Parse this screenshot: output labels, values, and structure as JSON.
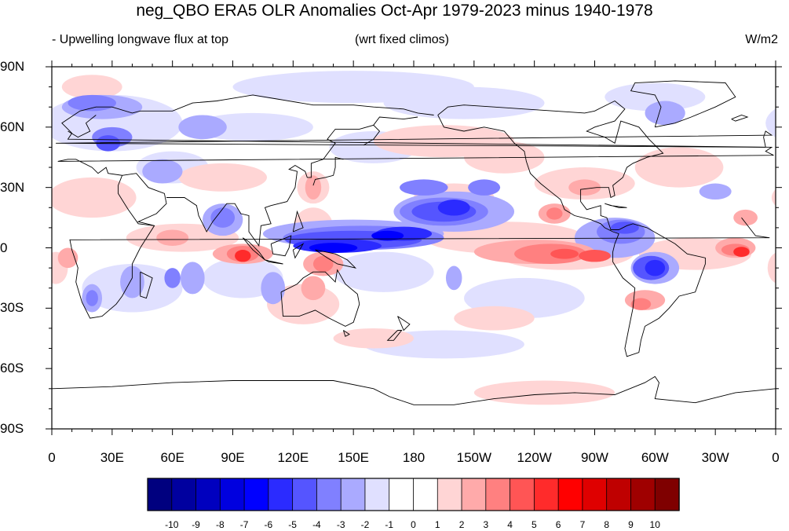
{
  "title": "neg_QBO ERA5 OLR Anomalies Oct-Apr 1979-2023 minus 1940-1978",
  "subtitle_left": "- Upwelling longwave flux at top",
  "subtitle_center": "(wrt fixed climos)",
  "units": "W/m2",
  "lat_labels": [
    "90N",
    "60N",
    "30N",
    "0",
    "30S",
    "60S",
    "90S"
  ],
  "lon_labels": [
    "0",
    "30E",
    "60E",
    "90E",
    "120E",
    "150E",
    "180",
    "150W",
    "120W",
    "90W",
    "60W",
    "30W",
    "0"
  ],
  "colorbar": {
    "labels": [
      "-10",
      "-9",
      "-8",
      "-7",
      "-6",
      "-5",
      "-4",
      "-3",
      "-2",
      "-1",
      "0",
      "1",
      "2",
      "3",
      "4",
      "5",
      "6",
      "7",
      "8",
      "9",
      "10"
    ],
    "colors": [
      "#00007f",
      "#00009f",
      "#0000bf",
      "#0000df",
      "#0000ff",
      "#2b2bff",
      "#5555ff",
      "#8080ff",
      "#aaaaff",
      "#e0e0ff",
      "#ffffff",
      "#ffffff",
      "#ffd5d5",
      "#ffaaaa",
      "#ff8080",
      "#ff5555",
      "#ff2b2b",
      "#ff0000",
      "#df0000",
      "#bf0000",
      "#9f0000",
      "#7f0000"
    ]
  }
}
